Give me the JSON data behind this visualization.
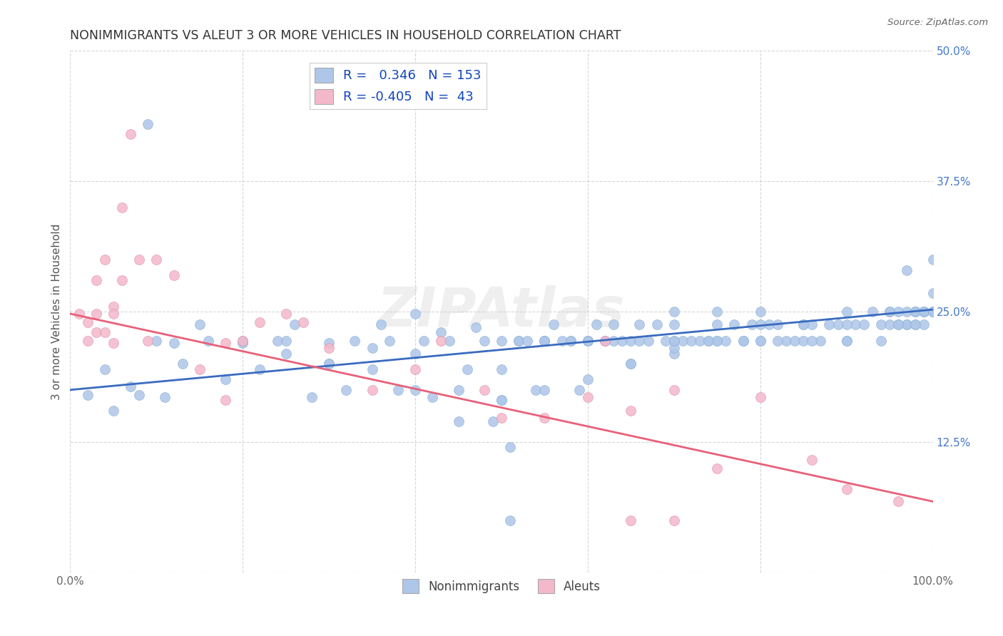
{
  "title": "NONIMMIGRANTS VS ALEUT 3 OR MORE VEHICLES IN HOUSEHOLD CORRELATION CHART",
  "source": "Source: ZipAtlas.com",
  "ylabel": "3 or more Vehicles in Household",
  "xlim": [
    0.0,
    1.0
  ],
  "ylim": [
    0.0,
    0.5
  ],
  "yticks": [
    0.0,
    0.125,
    0.25,
    0.375,
    0.5
  ],
  "ytick_labels": [
    "",
    "12.5%",
    "25.0%",
    "37.5%",
    "50.0%"
  ],
  "xticks": [
    0.0,
    0.2,
    0.4,
    0.6,
    0.8,
    1.0
  ],
  "xtick_labels": [
    "0.0%",
    "",
    "",
    "",
    "",
    "100.0%"
  ],
  "legend_R1": "0.346",
  "legend_N1": "153",
  "legend_R2": "-0.405",
  "legend_N2": "43",
  "blue_color": "#aec6e8",
  "pink_color": "#f4b8cb",
  "blue_line_color": "#3a6bbf",
  "pink_line_color": "#e8607a",
  "blue_line_x0": 0.0,
  "blue_line_y0": 0.175,
  "blue_line_x1": 1.0,
  "blue_line_y1": 0.252,
  "pink_line_x0": 0.0,
  "pink_line_y0": 0.248,
  "pink_line_x1": 1.0,
  "pink_line_y1": 0.068,
  "blue_x": [
    0.02,
    0.04,
    0.05,
    0.07,
    0.08,
    0.09,
    0.1,
    0.11,
    0.12,
    0.13,
    0.15,
    0.16,
    0.18,
    0.2,
    0.22,
    0.24,
    0.25,
    0.26,
    0.28,
    0.3,
    0.3,
    0.32,
    0.33,
    0.35,
    0.36,
    0.37,
    0.38,
    0.4,
    0.4,
    0.41,
    0.42,
    0.43,
    0.44,
    0.45,
    0.46,
    0.47,
    0.48,
    0.49,
    0.5,
    0.5,
    0.51,
    0.51,
    0.52,
    0.52,
    0.53,
    0.54,
    0.55,
    0.55,
    0.56,
    0.57,
    0.58,
    0.59,
    0.6,
    0.61,
    0.62,
    0.63,
    0.64,
    0.65,
    0.66,
    0.67,
    0.68,
    0.69,
    0.7,
    0.7,
    0.71,
    0.72,
    0.73,
    0.74,
    0.75,
    0.76,
    0.77,
    0.78,
    0.79,
    0.8,
    0.81,
    0.82,
    0.83,
    0.84,
    0.85,
    0.86,
    0.87,
    0.88,
    0.89,
    0.9,
    0.91,
    0.92,
    0.93,
    0.94,
    0.95,
    0.96,
    0.97,
    0.97,
    0.98,
    0.98,
    0.99,
    0.99,
    1.0,
    1.0,
    1.0,
    1.0,
    0.2,
    0.25,
    0.3,
    0.35,
    0.4,
    0.45,
    0.5,
    0.55,
    0.6,
    0.65,
    0.7,
    0.75,
    0.8,
    0.85,
    0.9,
    0.95,
    0.97,
    0.98,
    0.99,
    1.0,
    0.5,
    0.55,
    0.6,
    0.65,
    0.7,
    0.75,
    0.8,
    0.85,
    0.9,
    0.95,
    0.96,
    0.97,
    0.98,
    0.99,
    1.0,
    0.62,
    0.66,
    0.7,
    0.74,
    0.78,
    0.82,
    0.86,
    0.9,
    0.94,
    0.96,
    0.98,
    1.0,
    0.58,
    0.6,
    0.63,
    0.7,
    0.75,
    0.8
  ],
  "blue_y": [
    0.17,
    0.195,
    0.155,
    0.178,
    0.17,
    0.43,
    0.222,
    0.168,
    0.22,
    0.2,
    0.238,
    0.222,
    0.185,
    0.22,
    0.195,
    0.222,
    0.21,
    0.238,
    0.168,
    0.2,
    0.22,
    0.175,
    0.222,
    0.215,
    0.238,
    0.222,
    0.175,
    0.21,
    0.248,
    0.222,
    0.168,
    0.23,
    0.222,
    0.175,
    0.195,
    0.235,
    0.222,
    0.145,
    0.165,
    0.195,
    0.05,
    0.12,
    0.222,
    0.222,
    0.222,
    0.175,
    0.222,
    0.222,
    0.238,
    0.222,
    0.222,
    0.175,
    0.222,
    0.238,
    0.222,
    0.222,
    0.222,
    0.2,
    0.238,
    0.222,
    0.238,
    0.222,
    0.21,
    0.238,
    0.222,
    0.222,
    0.222,
    0.222,
    0.238,
    0.222,
    0.238,
    0.222,
    0.238,
    0.222,
    0.238,
    0.238,
    0.222,
    0.222,
    0.238,
    0.238,
    0.222,
    0.238,
    0.238,
    0.222,
    0.238,
    0.238,
    0.25,
    0.238,
    0.25,
    0.25,
    0.238,
    0.29,
    0.25,
    0.25,
    0.25,
    0.25,
    0.25,
    0.25,
    0.3,
    0.268,
    0.222,
    0.222,
    0.2,
    0.195,
    0.175,
    0.145,
    0.165,
    0.175,
    0.185,
    0.2,
    0.215,
    0.222,
    0.238,
    0.238,
    0.25,
    0.25,
    0.25,
    0.25,
    0.25,
    0.25,
    0.222,
    0.222,
    0.222,
    0.222,
    0.222,
    0.222,
    0.222,
    0.222,
    0.238,
    0.238,
    0.238,
    0.238,
    0.238,
    0.238,
    0.25,
    0.222,
    0.222,
    0.222,
    0.222,
    0.222,
    0.222,
    0.222,
    0.222,
    0.222,
    0.238,
    0.238,
    0.25,
    0.222,
    0.222,
    0.238,
    0.25,
    0.25,
    0.25
  ],
  "pink_x": [
    0.01,
    0.02,
    0.02,
    0.03,
    0.03,
    0.03,
    0.04,
    0.04,
    0.05,
    0.05,
    0.05,
    0.06,
    0.06,
    0.07,
    0.08,
    0.09,
    0.1,
    0.12,
    0.15,
    0.18,
    0.2,
    0.22,
    0.25,
    0.27,
    0.3,
    0.35,
    0.4,
    0.43,
    0.48,
    0.5,
    0.55,
    0.6,
    0.62,
    0.65,
    0.7,
    0.75,
    0.8,
    0.86,
    0.9,
    0.96,
    0.18,
    0.65,
    0.7
  ],
  "pink_y": [
    0.248,
    0.222,
    0.24,
    0.248,
    0.23,
    0.28,
    0.23,
    0.3,
    0.255,
    0.22,
    0.248,
    0.28,
    0.35,
    0.42,
    0.3,
    0.222,
    0.3,
    0.285,
    0.195,
    0.22,
    0.222,
    0.24,
    0.248,
    0.24,
    0.215,
    0.175,
    0.195,
    0.222,
    0.175,
    0.148,
    0.148,
    0.168,
    0.222,
    0.155,
    0.175,
    0.1,
    0.168,
    0.108,
    0.08,
    0.068,
    0.165,
    0.05,
    0.05
  ]
}
